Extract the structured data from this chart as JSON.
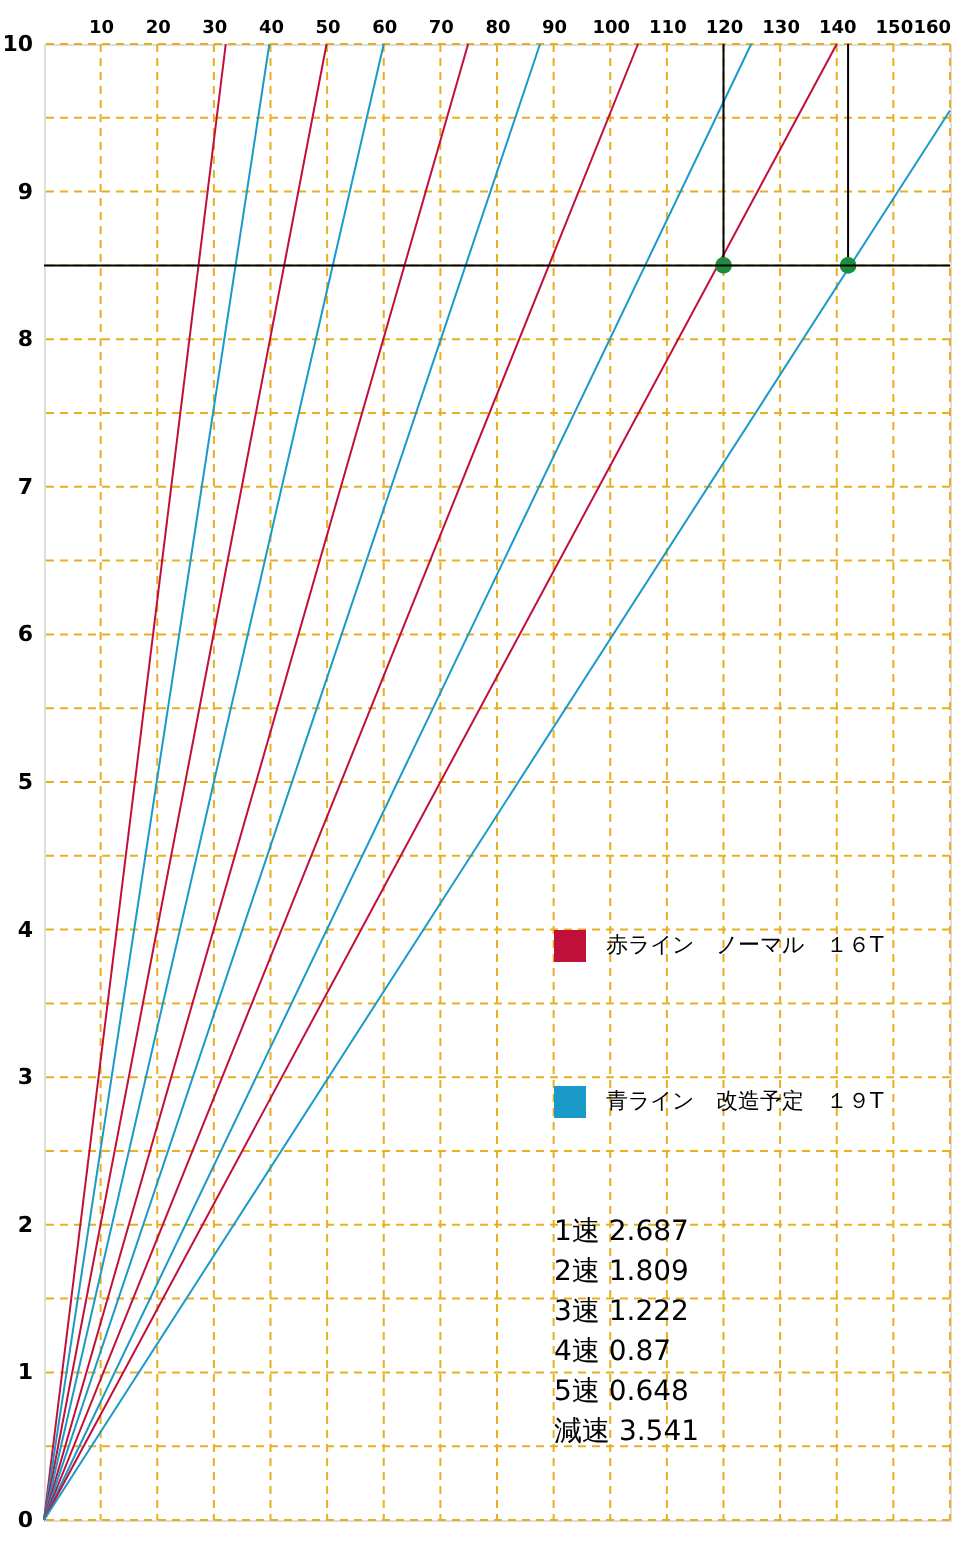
{
  "chart_data": {
    "type": "line",
    "xlim": [
      0,
      160
    ],
    "ylim": [
      0,
      10
    ],
    "xticks": [
      10,
      20,
      30,
      40,
      50,
      60,
      70,
      80,
      90,
      100,
      110,
      120,
      130,
      140,
      150,
      160
    ],
    "yticks": [
      0,
      {
        "value": 0.5,
        "label": null
      },
      1,
      {
        "value": 1.5,
        "label": null
      },
      2,
      {
        "value": 2.5,
        "label": null
      },
      3,
      {
        "value": 3.5,
        "label": null
      },
      4,
      {
        "value": 4.5,
        "label": null
      },
      5,
      {
        "value": 5.5,
        "label": null
      },
      6,
      {
        "value": 6.5,
        "label": null
      },
      7,
      {
        "value": 7.5,
        "label": null
      },
      8,
      {
        "value": 8.5,
        "label": null
      },
      9,
      {
        "value": 9.5,
        "label": null
      },
      10
    ],
    "grid": true,
    "legend": "right",
    "marker": "none",
    "line_style": "solid",
    "series": [
      {
        "name": "赤ライン　ノーマル　１６T",
        "color": "#c0103a",
        "x": [
          0,
          32.1
        ],
        "values": [
          0,
          10
        ]
      },
      {
        "name": "青ライン　改造予定　１９T",
        "color": "#1a9ac8",
        "x": [
          0,
          39.8
        ],
        "values": [
          0,
          10
        ]
      },
      {
        "color": "#c0103a",
        "x": [
          0,
          49.9
        ],
        "values": [
          0,
          10
        ]
      },
      {
        "color": "#1a9ac8",
        "x": [
          0,
          60.0
        ],
        "values": [
          0,
          10
        ]
      },
      {
        "color": "#c0103a",
        "x": [
          0,
          74.9
        ],
        "values": [
          0,
          10
        ]
      },
      {
        "color": "#1a9ac8",
        "x": [
          0,
          87.6
        ],
        "values": [
          0,
          10
        ]
      },
      {
        "color": "#c0103a",
        "x": [
          0,
          104.9
        ],
        "values": [
          0,
          10
        ]
      },
      {
        "color": "#1a9ac8",
        "x": [
          0,
          124.9
        ],
        "values": [
          0,
          10
        ]
      },
      {
        "color": "#c0103a",
        "x": [
          0,
          140.0
        ],
        "values": [
          0,
          10
        ]
      },
      {
        "color": "#1a9ac8",
        "x": [
          0,
          160
        ],
        "values": [
          0,
          9.55
        ]
      },
      {
        "type": "line",
        "color": "#000000",
        "x": [
          120,
          120
        ],
        "values": [
          8.5,
          10
        ]
      },
      {
        "type": "line",
        "color": "#000000",
        "x": [
          142,
          142
        ],
        "values": [
          8.5,
          10
        ]
      },
      {
        "type": "scatter",
        "marker": "circle",
        "color": "#1e8c3c",
        "x": [
          120,
          142
        ],
        "values": [
          8.5,
          8.5
        ]
      }
    ],
    "ref_lines": [
      {
        "axis": "y",
        "value": 8.5,
        "color": "#000000"
      }
    ],
    "annotations": [
      "1速 2.687",
      "2速 1.809",
      "3速 1.222",
      "4速 0.87",
      "5速 0.648",
      "減速 3.541"
    ]
  }
}
